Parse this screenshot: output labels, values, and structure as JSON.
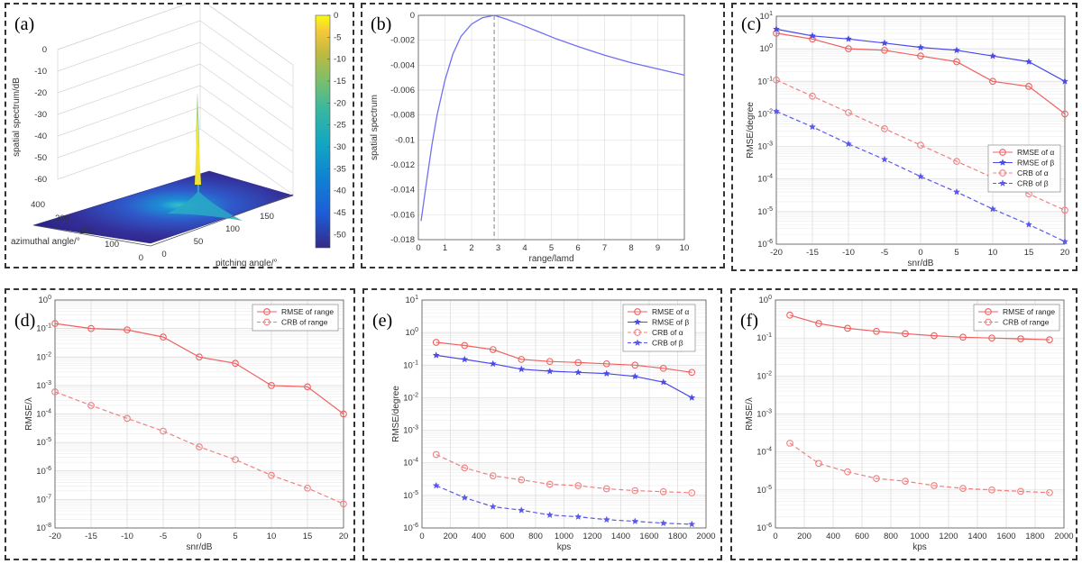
{
  "panels": [
    {
      "id": "a",
      "label": "(a)",
      "chart_data": {
        "type": "surface3d",
        "xlabel": "azimuthal angle/°",
        "ylabel": "pitching angle/°",
        "zlabel": "spatial spectrum/dB",
        "x_ticks": [
          "0",
          "100",
          "200",
          "300",
          "400"
        ],
        "y_ticks": [
          "0",
          "50",
          "100",
          "150"
        ],
        "z_ticks": [
          "0",
          "-10",
          "-20",
          "-30",
          "-40",
          "-50",
          "-60"
        ],
        "zlim": [
          -60,
          0
        ],
        "colorbar_ticks": [
          "0",
          "-5",
          "-10",
          "-15",
          "-20",
          "-25",
          "-30",
          "-35",
          "-40",
          "-45",
          "-50"
        ],
        "colorbar_range": [
          -53,
          0
        ]
      }
    },
    {
      "id": "b",
      "label": "(b)",
      "chart_data": {
        "type": "line",
        "xlabel": "range/lamd",
        "ylabel": "spatial spectrum",
        "xlim": [
          0,
          10
        ],
        "ylim": [
          -0.018,
          0
        ],
        "x_ticks": [
          "0",
          "1",
          "2",
          "3",
          "4",
          "5",
          "6",
          "7",
          "8",
          "9",
          "10"
        ],
        "y_ticks": [
          "0",
          "-0.002",
          "-0.004",
          "-0.006",
          "-0.008",
          "-0.01",
          "-0.012",
          "-0.014",
          "-0.016",
          "-0.018"
        ],
        "peak_x": 2.85,
        "series": [
          {
            "color": "#6f6ff5",
            "x": [
              0.1,
              0.3,
              0.5,
              0.7,
              1.0,
              1.3,
              1.6,
              2.0,
              2.4,
              2.85,
              3.3,
              3.8,
              4.5,
              5.2,
              6.0,
              7.0,
              8.0,
              9.0,
              10.0
            ],
            "y": [
              -0.0165,
              -0.0135,
              -0.0105,
              -0.008,
              -0.0052,
              -0.0031,
              -0.0017,
              -0.0007,
              -0.0002,
              0.0,
              -0.0003,
              -0.0007,
              -0.0013,
              -0.0019,
              -0.0025,
              -0.0032,
              -0.0038,
              -0.0043,
              -0.0048
            ]
          }
        ]
      }
    },
    {
      "id": "c",
      "label": "(c)",
      "chart_data": {
        "type": "line",
        "yscale": "log",
        "xlabel": "snr/dB",
        "ylabel": "RMSE/degree",
        "xlim": [
          -20,
          20
        ],
        "ylim_exp": [
          -6,
          1
        ],
        "x_ticks": [
          "-20",
          "-15",
          "-10",
          "-5",
          "0",
          "5",
          "10",
          "15",
          "20"
        ],
        "legend": "right",
        "x": [
          -20,
          -15,
          -10,
          -5,
          0,
          5,
          10,
          15,
          20
        ],
        "series": [
          {
            "name": "RMSE of α",
            "color": "#f06060",
            "dash": false,
            "marker": "circle",
            "values": [
              3,
              2,
              1,
              0.9,
              0.6,
              0.4,
              0.1,
              0.07,
              0.01
            ]
          },
          {
            "name": "RMSE of β",
            "color": "#4848ec",
            "dash": false,
            "marker": "star",
            "values": [
              4,
              2.5,
              2,
              1.5,
              1.1,
              0.9,
              0.6,
              0.4,
              0.1
            ]
          },
          {
            "name": "CRB of α",
            "color": "#f08080",
            "dash": true,
            "marker": "circle",
            "values": [
              0.11,
              0.035,
              0.011,
              0.0035,
              0.0011,
              0.00035,
              0.00011,
              3.5e-05,
              1.1e-05
            ]
          },
          {
            "name": "CRB of β",
            "color": "#5858ee",
            "dash": true,
            "marker": "star",
            "values": [
              0.012,
              0.004,
              0.0012,
              0.0004,
              0.00012,
              4e-05,
              1.2e-05,
              4e-06,
              1.2e-06
            ]
          }
        ]
      }
    },
    {
      "id": "d",
      "label": "(d)",
      "chart_data": {
        "type": "line",
        "yscale": "log",
        "xlabel": "snr/dB",
        "ylabel": "RMSE/λ",
        "xlim": [
          -20,
          20
        ],
        "ylim_exp": [
          -8,
          0
        ],
        "x_ticks": [
          "-20",
          "-15",
          "-10",
          "-5",
          "0",
          "5",
          "10",
          "15",
          "20"
        ],
        "legend": "top-right",
        "x": [
          -20,
          -15,
          -10,
          -5,
          0,
          5,
          10,
          15,
          20
        ],
        "series": [
          {
            "name": "RMSE of range",
            "color": "#f06060",
            "dash": false,
            "marker": "circle",
            "values": [
              0.15,
              0.1,
              0.09,
              0.05,
              0.01,
              0.006,
              0.001,
              0.0009,
              0.0001
            ]
          },
          {
            "name": "CRB of range",
            "color": "#f08080",
            "dash": true,
            "marker": "circle",
            "values": [
              0.0006,
              0.0002,
              7e-05,
              2.5e-05,
              7e-06,
              2.5e-06,
              7e-07,
              2.5e-07,
              7e-08
            ]
          }
        ]
      }
    },
    {
      "id": "e",
      "label": "(e)",
      "chart_data": {
        "type": "line",
        "yscale": "log",
        "xlabel": "kps",
        "ylabel": "RMSE/degree",
        "xlim": [
          0,
          2000
        ],
        "ylim_exp": [
          -6,
          1
        ],
        "x_ticks": [
          "0",
          "200",
          "400",
          "600",
          "800",
          "1000",
          "1200",
          "1400",
          "1600",
          "1800",
          "2000"
        ],
        "legend": "top-right",
        "x": [
          100,
          300,
          500,
          700,
          900,
          1100,
          1300,
          1500,
          1700,
          1900
        ],
        "series": [
          {
            "name": "RMSE of α",
            "color": "#f06060",
            "dash": false,
            "marker": "circle",
            "values": [
              0.5,
              0.4,
              0.3,
              0.15,
              0.13,
              0.12,
              0.11,
              0.1,
              0.08,
              0.06
            ]
          },
          {
            "name": "RMSE of β",
            "color": "#4848ec",
            "dash": false,
            "marker": "star",
            "values": [
              0.2,
              0.15,
              0.11,
              0.075,
              0.065,
              0.06,
              0.055,
              0.045,
              0.03,
              0.01
            ]
          },
          {
            "name": "CRB of α",
            "color": "#f08080",
            "dash": true,
            "marker": "circle",
            "values": [
              0.00018,
              7e-05,
              4e-05,
              3e-05,
              2.2e-05,
              2e-05,
              1.6e-05,
              1.4e-05,
              1.3e-05,
              1.2e-05
            ]
          },
          {
            "name": "CRB of β",
            "color": "#5858ee",
            "dash": true,
            "marker": "star",
            "values": [
              2e-05,
              8.5e-06,
              4.5e-06,
              3.5e-06,
              2.5e-06,
              2.2e-06,
              1.8e-06,
              1.6e-06,
              1.4e-06,
              1.3e-06
            ]
          }
        ]
      }
    },
    {
      "id": "f",
      "label": "(f)",
      "chart_data": {
        "type": "line",
        "yscale": "log",
        "xlabel": "kps",
        "ylabel": "RMSE/λ",
        "xlim": [
          0,
          2000
        ],
        "ylim_exp": [
          -6,
          0
        ],
        "x_ticks": [
          "0",
          "200",
          "400",
          "600",
          "800",
          "1000",
          "1200",
          "1400",
          "1600",
          "1800",
          "2000"
        ],
        "legend": "top-right",
        "x": [
          100,
          300,
          500,
          700,
          900,
          1100,
          1300,
          1500,
          1700,
          1900
        ],
        "series": [
          {
            "name": "RMSE of range",
            "color": "#f06060",
            "dash": false,
            "marker": "circle",
            "values": [
              0.4,
              0.24,
              0.18,
              0.15,
              0.13,
              0.115,
              0.105,
              0.1,
              0.095,
              0.09
            ]
          },
          {
            "name": "CRB of range",
            "color": "#f08080",
            "dash": true,
            "marker": "circle",
            "values": [
              0.00017,
              5e-05,
              3e-05,
              2e-05,
              1.7e-05,
              1.3e-05,
              1.1e-05,
              1e-05,
              9.2e-06,
              8.5e-06
            ]
          }
        ]
      }
    }
  ]
}
